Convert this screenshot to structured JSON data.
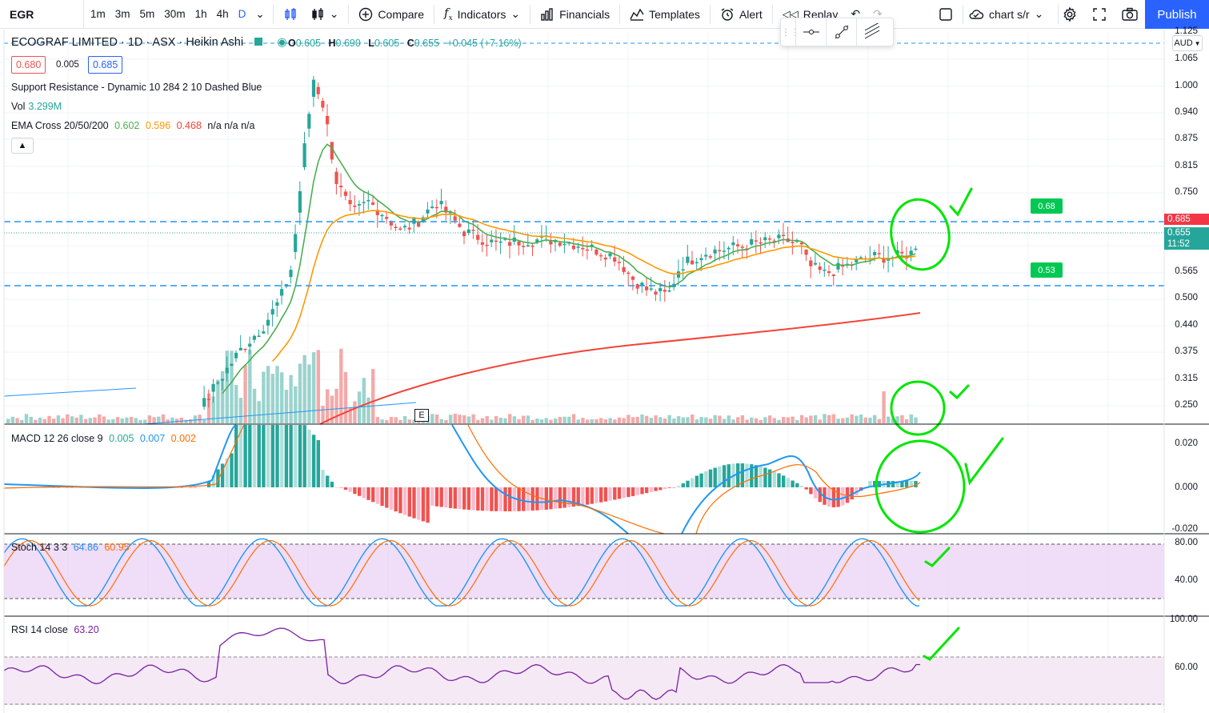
{
  "toolbar": {
    "symbol": "EGR",
    "intervals": [
      "1m",
      "3m",
      "5m",
      "30m",
      "1h",
      "4h",
      "D"
    ],
    "compare": "Compare",
    "indicators": "Indicators",
    "financials": "Financials",
    "templates": "Templates",
    "alert": "Alert",
    "replay": "Replay",
    "layout": "chart s/r",
    "publish": "Publish"
  },
  "header": {
    "title": "ECOGRAF LIMITED · 1D · ASX · Heikin Ashi",
    "ohlc": {
      "o_label": "O",
      "o": "0.605",
      "h_label": "H",
      "h": "0.690",
      "l_label": "L",
      "l": "0.605",
      "c_label": "C",
      "c": "0.655",
      "chg": "+0.045 (+7.16%)"
    },
    "bid": "0.680",
    "spread": "0.005",
    "ask": "0.685",
    "currency": "AUD"
  },
  "legends": {
    "sr": "Support Resistance - Dynamic 10 284 2 10 Dashed Blue",
    "vol_label": "Vol",
    "vol_value": "3.299M",
    "ema_label": "EMA Cross 20/50/200",
    "ema20": "0.602",
    "ema50": "0.596",
    "ema200": "0.468",
    "ema_na": "n/a n/a n/a",
    "macd_label": "MACD 12 26 close 9",
    "macd_hist": "0.005",
    "macd_line": "0.007",
    "macd_signal": "0.002",
    "stoch_label": "Stoch 14 3 3",
    "stoch_k": "64.86",
    "stoch_d": "60.95",
    "rsi_label": "RSI 14 close",
    "rsi_value": "63.20",
    "e_marker": "E"
  },
  "price_axis": [
    "1.125",
    "1.065",
    "1.000",
    "0.940",
    "0.875",
    "0.815",
    "0.750",
    "0.685",
    "0.655",
    "0.565",
    "0.500",
    "0.440",
    "0.375",
    "0.315",
    "0.250"
  ],
  "price_tags": {
    "resistance": "0.685",
    "last": "0.655",
    "countdown": "11:52"
  },
  "level_tags": {
    "upper": "0.68",
    "lower": "0.53"
  },
  "macd_axis": [
    "0.020",
    "0.000",
    "-0.020"
  ],
  "stoch_axis": [
    "80.00",
    "40.00"
  ],
  "rsi_axis": [
    "100.00",
    "60.00"
  ],
  "colors": {
    "up": "#26a69a",
    "down": "#ef5350",
    "ema20": "#4caf50",
    "ema50": "#ff9800",
    "ema200": "#f44336",
    "sr": "#2196f3",
    "annotation": "#00e600",
    "stoch_bg": "#e1bee7",
    "rsi_line": "#7b1fa2"
  },
  "chart_data": {
    "type": "candlestick",
    "title": "ECOGRAF LIMITED · 1D · ASX · Heikin Ashi",
    "y_range": [
      0.22,
      1.125
    ],
    "support_resistance": [
      0.685,
      0.53
    ],
    "annotations": [
      "check-mark",
      "circle"
    ],
    "panes": [
      "price+volume",
      "MACD",
      "Stoch",
      "RSI"
    ]
  }
}
